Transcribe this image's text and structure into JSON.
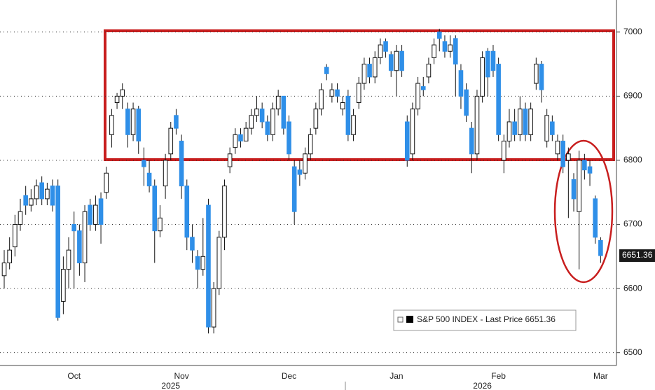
{
  "chart_data": {
    "type": "candlestick",
    "series_name": "S&P 500 INDEX - Last Price 6651.36",
    "categories": [
      null,
      null,
      null,
      null,
      null,
      null,
      null,
      null,
      null,
      null,
      null,
      null,
      null,
      "Oct",
      null,
      null,
      null,
      null,
      null,
      null,
      null,
      null,
      null,
      null,
      null,
      null,
      null,
      null,
      null,
      null,
      null,
      null,
      null,
      "Nov",
      null,
      null,
      null,
      null,
      null,
      null,
      null,
      null,
      null,
      null,
      null,
      null,
      null,
      null,
      null,
      null,
      null,
      null,
      null,
      "Dec",
      null,
      null,
      null,
      null,
      null,
      null,
      null,
      null,
      null,
      null,
      null,
      null,
      null,
      null,
      null,
      null,
      null,
      null,
      null,
      "Jan",
      null,
      null,
      null,
      null,
      null,
      null,
      null,
      null,
      null,
      null,
      null,
      null,
      null,
      null,
      null,
      null,
      null,
      null,
      "Feb",
      null,
      null,
      null,
      null,
      null,
      null,
      null,
      null,
      null,
      null,
      null,
      null,
      null,
      null,
      null,
      null,
      null,
      null,
      "Mar"
    ],
    "years": [
      null,
      null,
      null,
      null,
      null,
      null,
      null,
      null,
      null,
      null,
      null,
      null,
      null,
      null,
      null,
      null,
      null,
      null,
      null,
      null,
      null,
      null,
      null,
      null,
      null,
      null,
      null,
      null,
      null,
      null,
      null,
      "2025",
      null,
      null,
      null,
      null,
      null,
      null,
      null,
      null,
      null,
      null,
      null,
      null,
      null,
      null,
      null,
      null,
      null,
      null,
      null,
      null,
      null,
      null,
      null,
      null,
      null,
      null,
      null,
      null,
      null,
      null,
      null,
      null,
      null,
      null,
      null,
      null,
      null,
      null,
      null,
      null,
      null,
      null,
      null,
      null,
      null,
      null,
      null,
      null,
      null,
      null,
      null,
      null,
      null,
      null,
      null,
      null,
      null,
      "2026",
      null,
      null,
      null,
      null,
      null,
      null,
      null,
      null,
      null,
      null,
      null,
      null,
      null,
      null,
      null,
      null,
      null,
      null,
      null,
      null,
      null,
      null
    ],
    "open": [
      6620,
      6640,
      6665,
      6700,
      6745,
      6730,
      6740,
      6765,
      6740,
      6760,
      6760,
      6580,
      6630,
      6700,
      6690,
      6640,
      6730,
      6700,
      6740,
      6750,
      6840,
      6890,
      6900,
      6880,
      6840,
      6880,
      6800,
      6780,
      6760,
      6690,
      6760,
      6810,
      6870,
      6830,
      6760,
      6680,
      6650,
      6630,
      6730,
      6540,
      6600,
      6680,
      6790,
      6820,
      6840,
      6830,
      6850,
      6870,
      6880,
      6860,
      6840,
      6880,
      6900,
      6860,
      6790,
      6785,
      6780,
      6810,
      6850,
      6880,
      6945,
      6900,
      6910,
      6880,
      6900,
      6840,
      6890,
      6920,
      6950,
      6930,
      6960,
      6985,
      6965,
      6940,
      6970,
      6860,
      6810,
      6880,
      6915,
      6930,
      6960,
      7000,
      6985,
      6970,
      6990,
      6940,
      6910,
      6850,
      6810,
      6900,
      6970,
      6970,
      6950,
      6800,
      6830,
      6860,
      6840,
      6880,
      6840,
      6920,
      6950,
      6830,
      6860,
      6810,
      6830,
      6800,
      6770,
      6720,
      6800,
      6790,
      6740,
      6675
    ],
    "high": [
      6660,
      6680,
      6715,
      6740,
      6760,
      6755,
      6770,
      6775,
      6765,
      6770,
      6770,
      6650,
      6680,
      6720,
      6700,
      6730,
      6740,
      6745,
      6750,
      6790,
      6880,
      6905,
      6920,
      6890,
      6890,
      6885,
      6820,
      6800,
      6770,
      6730,
      6810,
      6860,
      6880,
      6840,
      6770,
      6700,
      6660,
      6710,
      6740,
      6610,
      6690,
      6770,
      6820,
      6850,
      6850,
      6860,
      6880,
      6900,
      6890,
      6870,
      6890,
      6910,
      6900,
      6870,
      6800,
      6800,
      6820,
      6850,
      6890,
      6920,
      6950,
      6920,
      6920,
      6900,
      6910,
      6880,
      6930,
      6960,
      6960,
      6970,
      6990,
      6990,
      6970,
      6980,
      6980,
      6870,
      6890,
      6930,
      6930,
      6960,
      6990,
      7005,
      6995,
      6995,
      6995,
      6950,
      6920,
      6860,
      6910,
      6970,
      6975,
      6980,
      6960,
      6840,
      6880,
      6880,
      6900,
      6890,
      6890,
      6960,
      6955,
      6880,
      6870,
      6840,
      6840,
      6820,
      6780,
      6815,
      6810,
      6800,
      6745,
      6680
    ],
    "low": [
      6600,
      6630,
      6650,
      6690,
      6715,
      6720,
      6730,
      6730,
      6730,
      6720,
      6550,
      6560,
      6600,
      6600,
      6620,
      6610,
      6690,
      6690,
      6670,
      6740,
      6820,
      6880,
      6880,
      6820,
      6830,
      6810,
      6760,
      6750,
      6640,
      6680,
      6740,
      6800,
      6840,
      6740,
      6660,
      6640,
      6600,
      6620,
      6530,
      6530,
      6590,
      6660,
      6780,
      6810,
      6820,
      6830,
      6840,
      6860,
      6850,
      6830,
      6830,
      6870,
      6840,
      6800,
      6700,
      6760,
      6770,
      6800,
      6840,
      6870,
      6925,
      6890,
      6890,
      6870,
      6830,
      6830,
      6880,
      6910,
      6920,
      6920,
      6950,
      6960,
      6930,
      6900,
      6930,
      6790,
      6800,
      6870,
      6900,
      6920,
      6950,
      6970,
      6960,
      6960,
      6900,
      6880,
      6860,
      6780,
      6800,
      6890,
      6900,
      6930,
      6830,
      6780,
      6820,
      6830,
      6830,
      6830,
      6830,
      6910,
      6890,
      6820,
      6830,
      6800,
      6780,
      6710,
      6720,
      6630,
      6770,
      6760,
      6670,
      6640
    ],
    "close": [
      6640,
      6660,
      6700,
      6720,
      6730,
      6740,
      6760,
      6740,
      6755,
      6730,
      6555,
      6630,
      6660,
      6690,
      6640,
      6720,
      6700,
      6730,
      6700,
      6780,
      6870,
      6900,
      6910,
      6840,
      6880,
      6830,
      6790,
      6760,
      6690,
      6710,
      6800,
      6850,
      6850,
      6760,
      6680,
      6660,
      6630,
      6650,
      6540,
      6600,
      6680,
      6760,
      6810,
      6840,
      6830,
      6850,
      6870,
      6880,
      6860,
      6840,
      6880,
      6900,
      6850,
      6810,
      6720,
      6778,
      6810,
      6840,
      6880,
      6910,
      6935,
      6910,
      6900,
      6890,
      6840,
      6870,
      6920,
      6950,
      6930,
      6960,
      6980,
      6970,
      6940,
      6970,
      6940,
      6800,
      6880,
      6920,
      6910,
      6950,
      6980,
      6990,
      6970,
      6980,
      6950,
      6900,
      6870,
      6810,
      6900,
      6960,
      6930,
      6940,
      6840,
      6830,
      6860,
      6840,
      6880,
      6840,
      6880,
      6950,
      6910,
      6870,
      6840,
      6830,
      6790,
      6810,
      6740,
      6800,
      6785,
      6780,
      6680,
      6651.36
    ],
    "up_color": "#ffffff",
    "down_color": "#2f8fe8",
    "ylim": [
      6480,
      7050
    ],
    "yticks": [
      6500,
      6600,
      6700,
      6800,
      6900,
      7000
    ],
    "grid": true
  }
}
